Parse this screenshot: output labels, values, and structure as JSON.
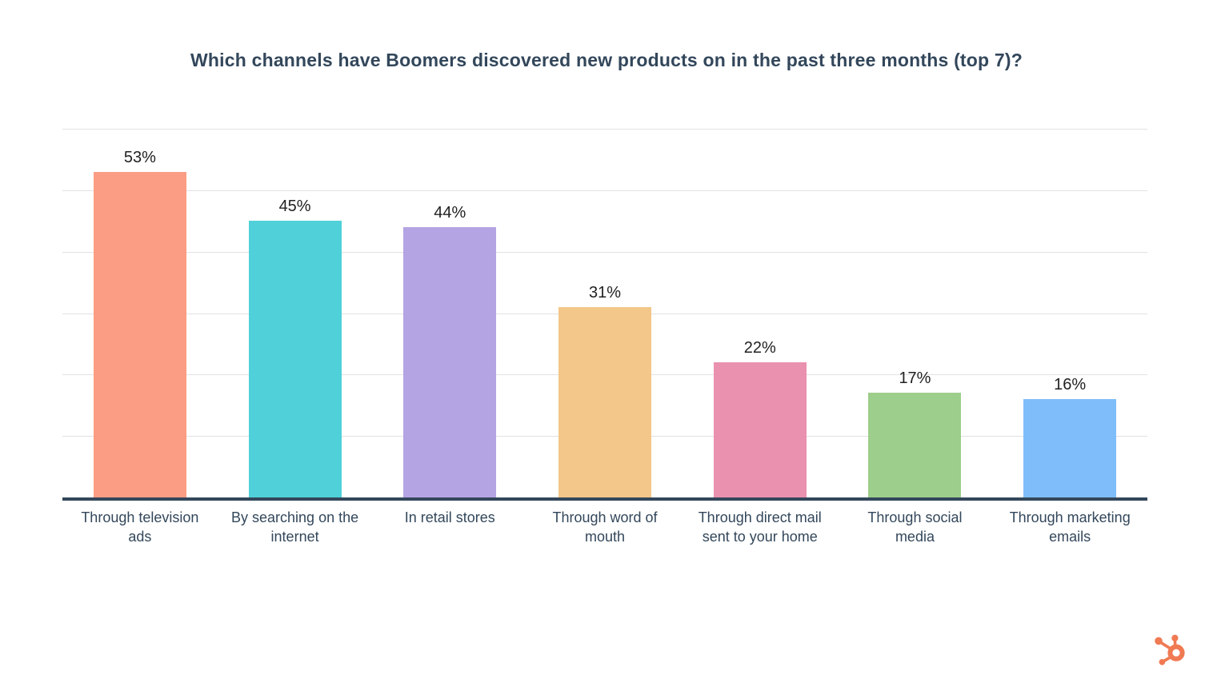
{
  "page": {
    "background": "#ffffff"
  },
  "chart_data": {
    "type": "bar",
    "title": "Which channels have Boomers discovered new products on in the past three months (top 7)?",
    "categories": [
      "Through television ads",
      "By searching on the internet",
      "In retail stores",
      "Through word of mouth",
      "Through direct mail sent to your home",
      "Through social media",
      "Through marketing emails"
    ],
    "category_display": [
      "Through television\nads",
      "By searching on the\ninternet",
      "In retail stores",
      "Through word of\nmouth",
      "Through direct mail\nsent to your home",
      "Through social\nmedia",
      "Through marketing\nemails"
    ],
    "values": [
      53,
      45,
      44,
      31,
      22,
      17,
      16
    ],
    "value_labels": [
      "53%",
      "45%",
      "44%",
      "31%",
      "22%",
      "17%",
      "16%"
    ],
    "bar_colors": [
      "#FA9D84",
      "#50D0D8",
      "#B5A4E3",
      "#F3C689",
      "#E991AE",
      "#9DCE8B",
      "#7FBDFA"
    ],
    "xlabel": "",
    "ylabel": "",
    "ylim": [
      0,
      60
    ],
    "gridline_step": 10,
    "grid": true,
    "legend": false,
    "y_tick_labels_visible": false
  },
  "styles": {
    "title_color": "#33475b",
    "axis_color": "#33475b",
    "gridline_color": "#e2e2e2",
    "value_label_color": "#212121",
    "category_label_color": "#33475b"
  },
  "branding": {
    "logo_name": "hubspot-sprocket",
    "logo_color": "#F07A53"
  }
}
